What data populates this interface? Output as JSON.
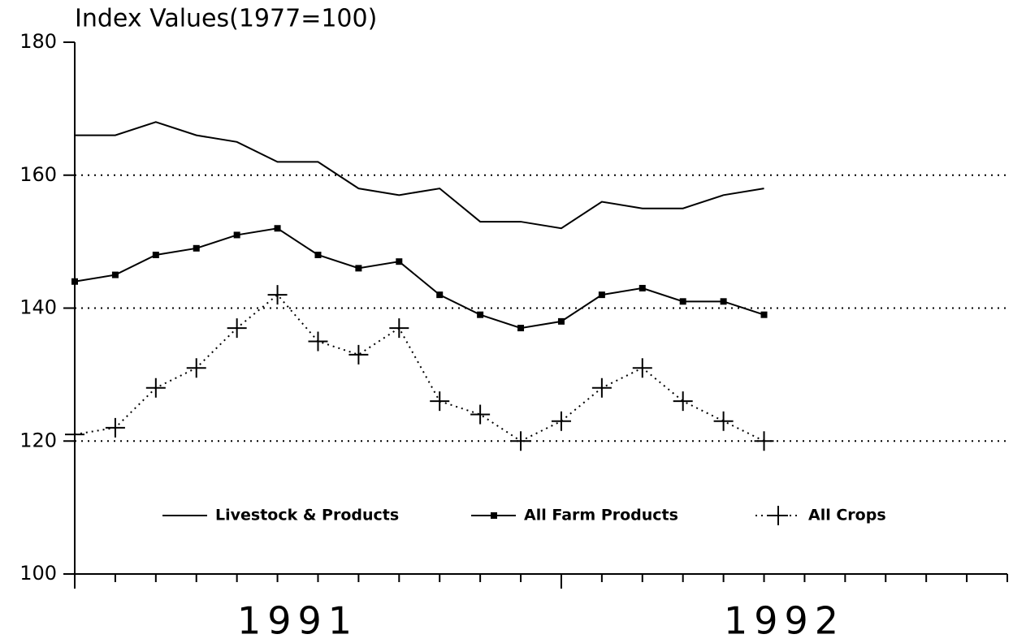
{
  "chart_data": {
    "type": "line",
    "title": "Index Values(1977=100)",
    "categories": [
      null,
      null,
      null,
      null,
      null,
      null,
      null,
      null,
      null,
      null,
      null,
      null,
      null,
      null,
      null,
      null,
      null,
      null,
      null,
      null,
      null,
      null,
      null,
      null
    ],
    "year_labels": [
      "1991",
      "1992"
    ],
    "series": [
      {
        "name": "Livestock & Products",
        "color": "#000000",
        "line_style": "solid",
        "marker": "none",
        "values": [
          166,
          166,
          168,
          166,
          165,
          162,
          162,
          158,
          157,
          158,
          153,
          153,
          152,
          156,
          155,
          155,
          157,
          158,
          null,
          null,
          null,
          null,
          null,
          null
        ]
      },
      {
        "name": "All Farm Products",
        "color": "#000000",
        "line_style": "solid",
        "marker": "square",
        "values": [
          144,
          145,
          148,
          149,
          151,
          152,
          148,
          146,
          147,
          142,
          139,
          137,
          138,
          142,
          143,
          141,
          141,
          139,
          null,
          null,
          null,
          null,
          null,
          null
        ]
      },
      {
        "name": "All Crops",
        "color": "#000000",
        "line_style": "dotted",
        "marker": "plus",
        "values": [
          121,
          122,
          128,
          131,
          137,
          142,
          135,
          133,
          137,
          126,
          124,
          120,
          123,
          128,
          131,
          126,
          123,
          120,
          null,
          null,
          null,
          null,
          null,
          null
        ]
      }
    ],
    "ylim": [
      100,
      180
    ],
    "yticks": [
      100,
      120,
      140,
      160,
      180
    ],
    "grid": true,
    "legend": "bottom"
  }
}
